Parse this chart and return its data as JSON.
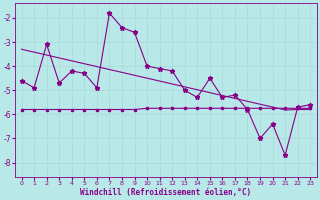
{
  "xlabel": "Windchill (Refroidissement éolien,°C)",
  "bg_color": "#b8e8e8",
  "grid_color": "#aadddd",
  "line_color": "#880088",
  "x": [
    0,
    1,
    2,
    3,
    4,
    5,
    6,
    7,
    8,
    9,
    10,
    11,
    12,
    13,
    14,
    15,
    16,
    17,
    18,
    19,
    20,
    21,
    22,
    23
  ],
  "y_jagged": [
    -4.6,
    -4.9,
    -3.1,
    -4.7,
    -4.2,
    -4.3,
    -4.9,
    -1.8,
    -2.4,
    -2.6,
    -4.0,
    -4.1,
    -4.2,
    -5.0,
    -5.3,
    -4.5,
    -5.3,
    -5.2,
    -5.8,
    -7.0,
    -6.4,
    -7.7,
    -5.7,
    -5.6
  ],
  "y_flat": [
    -5.8,
    -5.8,
    -5.8,
    -5.8,
    -5.8,
    -5.8,
    -5.8,
    -5.8,
    -5.8,
    -5.8,
    -5.75,
    -5.75,
    -5.75,
    -5.75,
    -5.75,
    -5.75,
    -5.75,
    -5.75,
    -5.75,
    -5.75,
    -5.75,
    -5.75,
    -5.75,
    -5.75
  ],
  "y_trend": [
    -3.3,
    -3.42,
    -3.54,
    -3.66,
    -3.78,
    -3.9,
    -4.02,
    -4.14,
    -4.26,
    -4.38,
    -4.5,
    -4.62,
    -4.74,
    -4.86,
    -4.98,
    -5.1,
    -5.22,
    -5.34,
    -5.46,
    -5.58,
    -5.7,
    -5.82,
    -5.8,
    -5.8
  ],
  "xlim": [
    -0.5,
    23.5
  ],
  "ylim": [
    -8.6,
    -1.4
  ],
  "yticks": [
    -8,
    -7,
    -6,
    -5,
    -4,
    -3,
    -2
  ],
  "xticks": [
    0,
    1,
    2,
    3,
    4,
    5,
    6,
    7,
    8,
    9,
    10,
    11,
    12,
    13,
    14,
    15,
    16,
    17,
    18,
    19,
    20,
    21,
    22,
    23
  ],
  "marker_jagged": "*",
  "marker_flat": "s",
  "markersize_jagged": 3.5,
  "markersize_flat": 1.5,
  "linewidth": 0.8
}
